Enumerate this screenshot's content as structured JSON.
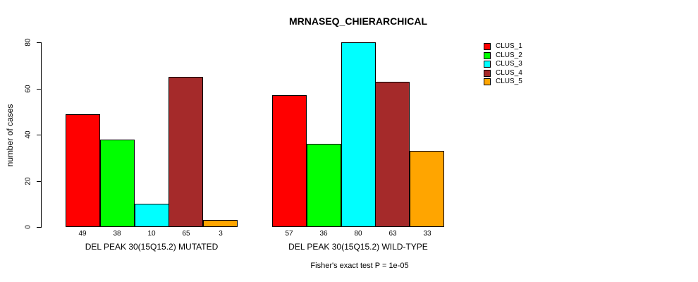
{
  "chart_data": {
    "type": "bar",
    "title": "MRNASEQ_CHIERARCHICAL",
    "ylabel": "number of cases",
    "xlabel": "",
    "ylim": [
      0,
      80
    ],
    "yticks": [
      0,
      20,
      40,
      60,
      80
    ],
    "grid": false,
    "legend_position": "right",
    "bar_value_labels": true,
    "series": [
      {
        "name": "CLUS_1",
        "color": "#FF0000"
      },
      {
        "name": "CLUS_2",
        "color": "#00FF00"
      },
      {
        "name": "CLUS_3",
        "color": "#00FFFF"
      },
      {
        "name": "CLUS_4",
        "color": "#A52A2A"
      },
      {
        "name": "CLUS_5",
        "color": "#FFA500"
      }
    ],
    "groups": [
      {
        "label": "DEL PEAK 30(15Q15.2) MUTATED",
        "values": [
          49,
          38,
          10,
          65,
          3
        ]
      },
      {
        "label": "DEL PEAK 30(15Q15.2) WILD-TYPE",
        "values": [
          57,
          36,
          80,
          63,
          33
        ]
      }
    ],
    "footnote": "Fisher's exact test P = 1e-05"
  }
}
